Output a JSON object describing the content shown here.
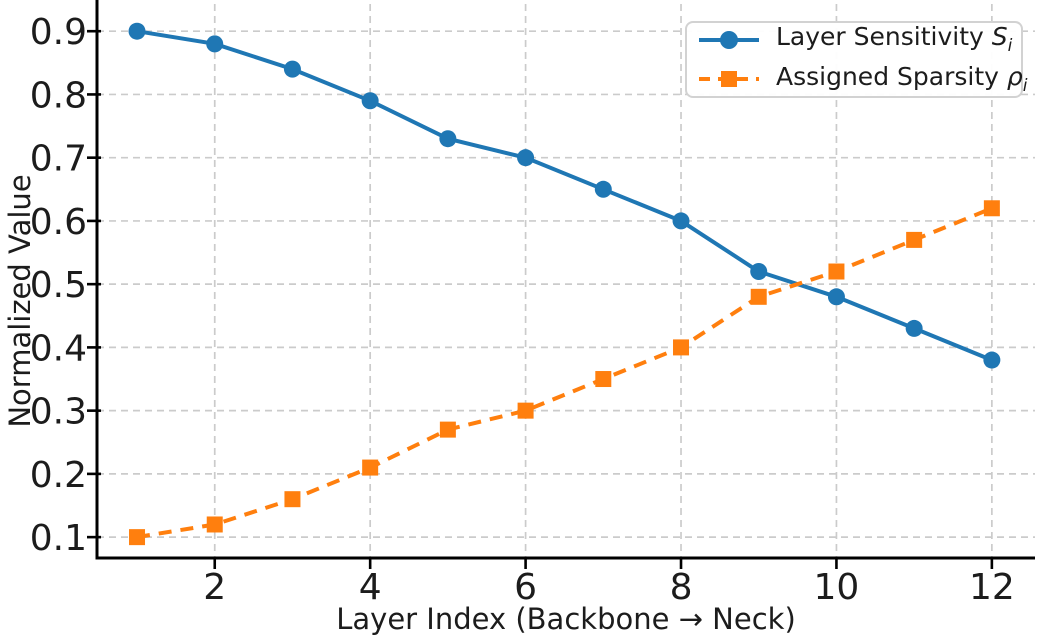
{
  "chart_data": {
    "type": "line",
    "title": "",
    "xlabel": "Layer Index (Backbone → Neck)",
    "ylabel": "Normalized Value",
    "x": [
      1,
      2,
      3,
      4,
      5,
      6,
      7,
      8,
      9,
      10,
      11,
      12
    ],
    "x_ticks": [
      2,
      4,
      6,
      8,
      10,
      12
    ],
    "y_ticks": [
      0.1,
      0.2,
      0.3,
      0.4,
      0.5,
      0.6,
      0.7,
      0.8,
      0.9
    ],
    "xlim": [
      0.485,
      12.555
    ],
    "ylim": [
      0.067,
      0.943
    ],
    "grid": true,
    "grid_color": "#cbcbcb",
    "axis_color": "#000000",
    "legend_position": "upper right",
    "series": [
      {
        "name": "Layer Sensitivity Sᵢ",
        "legend_text": "Layer Sensitivity",
        "legend_symbol": "S",
        "legend_subscript": "i",
        "color": "#1f77b4",
        "line_style": "solid",
        "marker": "circle",
        "values": [
          0.9,
          0.88,
          0.84,
          0.79,
          0.73,
          0.7,
          0.65,
          0.6,
          0.52,
          0.48,
          0.43,
          0.38
        ]
      },
      {
        "name": "Assigned Sparsity ρᵢ",
        "legend_text": "Assigned Sparsity",
        "legend_symbol": "ρ",
        "legend_subscript": "i",
        "color": "#ff7f0e",
        "line_style": "dashed",
        "marker": "square",
        "values": [
          0.1,
          0.12,
          0.16,
          0.21,
          0.27,
          0.3,
          0.35,
          0.4,
          0.48,
          0.52,
          0.57,
          0.62
        ]
      }
    ]
  }
}
